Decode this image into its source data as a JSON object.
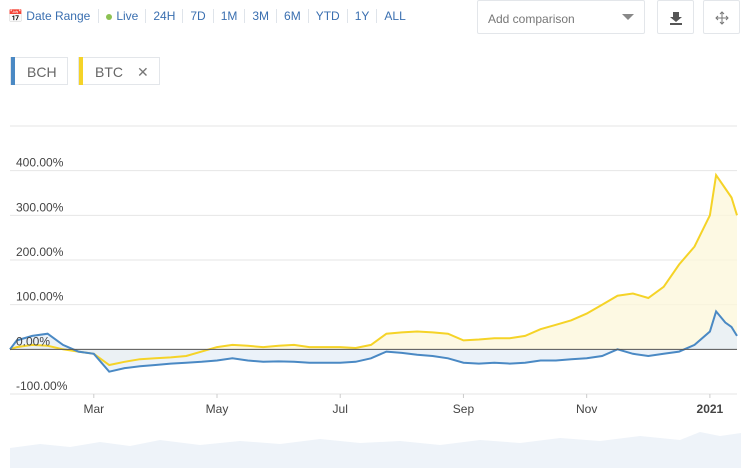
{
  "toolbar": {
    "date_range": "Date Range",
    "live": "Live",
    "ranges": [
      "24H",
      "7D",
      "1M",
      "3M",
      "6M",
      "YTD",
      "1Y",
      "ALL"
    ],
    "compare_placeholder": "Add comparison"
  },
  "chart_data": {
    "type": "line",
    "x": [
      1.64,
      1.75,
      2.0,
      2.25,
      2.5,
      2.75,
      3.0,
      3.25,
      3.5,
      3.75,
      4.0,
      4.25,
      4.5,
      4.75,
      5.0,
      5.25,
      5.5,
      5.75,
      6.0,
      6.25,
      6.5,
      6.75,
      7.0,
      7.25,
      7.5,
      7.75,
      8.0,
      8.25,
      8.5,
      8.75,
      9.0,
      9.25,
      9.5,
      9.75,
      10.0,
      10.25,
      10.5,
      10.75,
      11.0,
      11.25,
      11.5,
      11.75,
      12.0,
      12.25,
      12.5,
      12.75,
      13.0,
      13.1,
      13.25,
      13.35,
      13.44
    ],
    "series": [
      {
        "name": "BCH",
        "color": "#4a89c4",
        "fill": "#e6eff7",
        "values": [
          0,
          20,
          30,
          35,
          10,
          -5,
          -10,
          -50,
          -42,
          -38,
          -35,
          -32,
          -30,
          -28,
          -25,
          -20,
          -25,
          -28,
          -27,
          -28,
          -30,
          -30,
          -30,
          -28,
          -20,
          -5,
          -8,
          -12,
          -15,
          -20,
          -30,
          -32,
          -30,
          -32,
          -30,
          -25,
          -25,
          -22,
          -20,
          -15,
          0,
          -10,
          -15,
          -10,
          -5,
          10,
          40,
          85,
          60,
          50,
          30
        ]
      },
      {
        "name": "BTC",
        "color": "#f5d327",
        "fill": "#fdf7dc",
        "values": [
          0,
          5,
          10,
          8,
          0,
          -5,
          -10,
          -35,
          -28,
          -22,
          -20,
          -18,
          -15,
          -5,
          5,
          10,
          8,
          5,
          8,
          10,
          5,
          5,
          5,
          3,
          10,
          35,
          38,
          40,
          38,
          35,
          20,
          22,
          25,
          25,
          30,
          45,
          55,
          65,
          80,
          100,
          120,
          125,
          115,
          140,
          190,
          230,
          300,
          390,
          360,
          340,
          300
        ]
      }
    ],
    "xlim": [
      1.64,
      13.44
    ],
    "xticks": [
      {
        "value": 3,
        "label": "Mar"
      },
      {
        "value": 5,
        "label": "May"
      },
      {
        "value": 7,
        "label": "Jul"
      },
      {
        "value": 9,
        "label": "Sep"
      },
      {
        "value": 11,
        "label": "Nov"
      },
      {
        "value": 13,
        "label": "2021"
      }
    ],
    "ylim": [
      -100,
      500
    ],
    "yticks": [
      {
        "value": -100,
        "label": "-100.00%"
      },
      {
        "value": 0,
        "label": "0.00%"
      },
      {
        "value": 100,
        "label": "100.00%"
      },
      {
        "value": 200,
        "label": "200.00%"
      },
      {
        "value": 300,
        "label": "300.00%"
      },
      {
        "value": 400,
        "label": "400.00%"
      }
    ],
    "grid": true
  }
}
